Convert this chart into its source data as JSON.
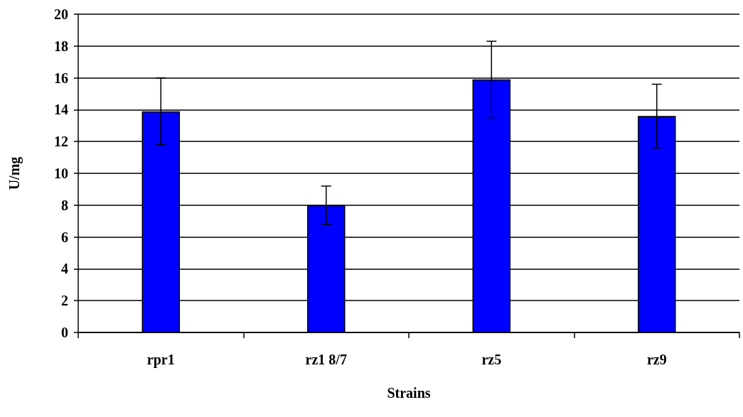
{
  "chart_data": {
    "type": "bar",
    "xlabel": "Strains",
    "ylabel": "U/mg",
    "categories": [
      "rpr1",
      "rz1 8/7",
      "rz5",
      "rz9"
    ],
    "values": [
      13.9,
      8.0,
      15.9,
      13.6
    ],
    "errors": [
      2.1,
      1.2,
      2.4,
      2.0
    ],
    "color": "#0000ff",
    "ylim": [
      0,
      20
    ],
    "yticks": [
      0,
      2,
      4,
      6,
      8,
      10,
      12,
      14,
      16,
      18,
      20
    ],
    "grid": "y"
  }
}
